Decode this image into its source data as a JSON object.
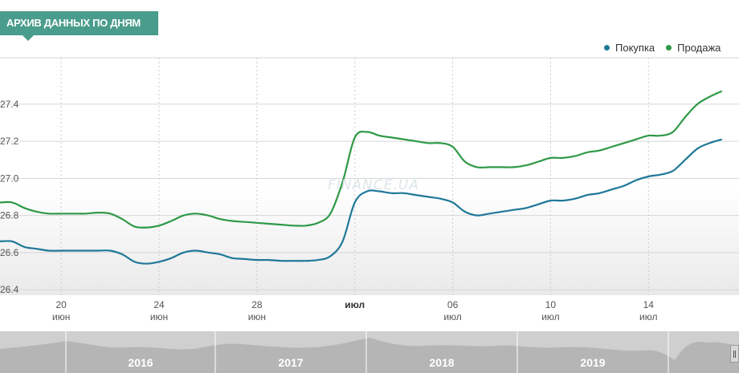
{
  "header": {
    "title": "АРХИВ ДАННЫХ ПО ДНЯМ"
  },
  "watermark": "FINANCE.UA",
  "colors": {
    "buy": "#1f7898",
    "sell": "#2e9947",
    "badge": "#4a9c8c"
  },
  "chart_data": {
    "type": "line",
    "x": [
      17.5,
      18,
      18.5,
      19,
      19.5,
      20,
      20.5,
      21,
      21.5,
      22,
      22.5,
      23,
      23.5,
      24,
      24.5,
      25,
      25.5,
      26,
      26.5,
      27,
      27.5,
      28,
      28.5,
      29,
      29.5,
      30,
      30.5,
      31,
      31.5,
      32,
      32.5,
      33,
      33.5,
      34,
      34.5,
      35,
      35.5,
      36,
      36.5,
      37,
      37.5,
      38,
      38.5,
      39,
      39.5,
      40,
      40.5,
      41,
      41.5,
      42,
      42.5,
      43,
      43.5,
      44,
      44.5,
      45,
      45.5,
      46,
      46.5,
      47
    ],
    "series": [
      {
        "name": "Покупка",
        "color": "#1f7898",
        "values": [
          26.66,
          26.66,
          26.63,
          26.62,
          26.61,
          26.61,
          26.61,
          26.61,
          26.61,
          26.61,
          26.59,
          26.55,
          26.54,
          26.55,
          26.57,
          26.6,
          26.61,
          26.6,
          26.59,
          26.57,
          26.565,
          26.56,
          26.56,
          26.555,
          26.555,
          26.555,
          26.56,
          26.58,
          26.66,
          26.87,
          26.93,
          26.93,
          26.92,
          26.92,
          26.91,
          26.9,
          26.89,
          26.87,
          26.82,
          26.8,
          26.81,
          26.82,
          26.83,
          26.84,
          26.86,
          26.88,
          26.88,
          26.89,
          26.91,
          26.92,
          26.94,
          26.96,
          26.99,
          27.01,
          27.02,
          27.04,
          27.1,
          27.16,
          27.19,
          27.21
        ]
      },
      {
        "name": "Продажа",
        "color": "#2e9947",
        "values": [
          26.87,
          26.87,
          26.84,
          26.82,
          26.81,
          26.81,
          26.81,
          26.81,
          26.815,
          26.81,
          26.78,
          26.74,
          26.735,
          26.745,
          26.77,
          26.8,
          26.81,
          26.8,
          26.78,
          26.77,
          26.765,
          26.76,
          26.755,
          26.75,
          26.745,
          26.745,
          26.76,
          26.81,
          26.98,
          27.22,
          27.25,
          27.23,
          27.22,
          27.21,
          27.2,
          27.19,
          27.19,
          27.17,
          27.09,
          27.06,
          27.06,
          27.06,
          27.06,
          27.07,
          27.09,
          27.11,
          27.11,
          27.12,
          27.14,
          27.15,
          27.17,
          27.19,
          27.21,
          27.23,
          27.23,
          27.25,
          27.33,
          27.4,
          27.44,
          27.47
        ]
      }
    ],
    "y_ticks": [
      "26.4",
      "26.6",
      "26.8",
      "27.0",
      "27.2",
      "27.4"
    ],
    "ylim": [
      26.37,
      27.65
    ],
    "xlim": [
      17.5,
      47.7
    ],
    "x_ticks": [
      {
        "x": 20,
        "day": "20",
        "month": "июн",
        "bold": false
      },
      {
        "x": 24,
        "day": "24",
        "month": "июн",
        "bold": false
      },
      {
        "x": 28,
        "day": "28",
        "month": "июн",
        "bold": false
      },
      {
        "x": 32,
        "day": "июл",
        "month": "",
        "bold": true
      },
      {
        "x": 36,
        "day": "06",
        "month": "июл",
        "bold": false
      },
      {
        "x": 40,
        "day": "10",
        "month": "июл",
        "bold": false
      },
      {
        "x": 44,
        "day": "14",
        "month": "июл",
        "bold": false
      }
    ],
    "legend_position": "top-right",
    "grid": true
  },
  "navigator": {
    "years": [
      "2016",
      "2017",
      "2018",
      "2019"
    ]
  }
}
